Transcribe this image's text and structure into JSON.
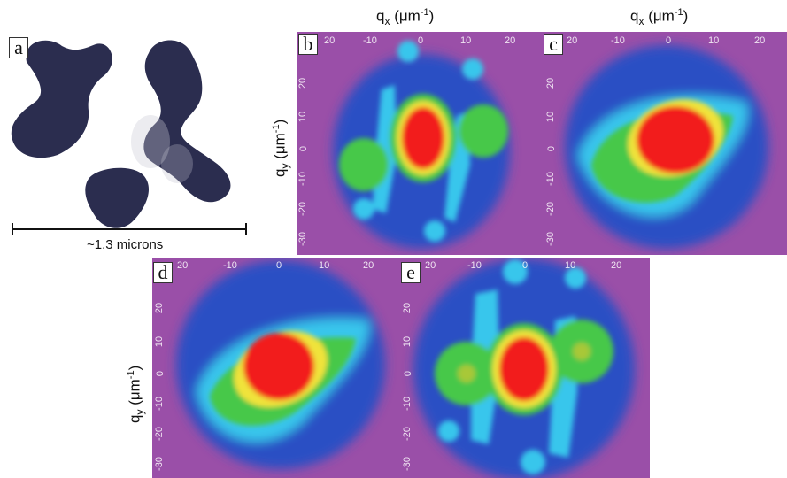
{
  "panels": {
    "a": {
      "letter": "a",
      "scale_label": "~1.3 microns"
    },
    "b": {
      "letter": "b"
    },
    "c": {
      "letter": "c"
    },
    "d": {
      "letter": "d"
    },
    "e": {
      "letter": "e"
    }
  },
  "axes": {
    "qx_label": "q",
    "qx_sub": "x",
    "qx_unit": " (μm",
    "qx_exp": "-1",
    "qx_close": ")",
    "qy_label": "q",
    "qy_sub": "y",
    "qy_unit": " (μm",
    "qy_exp": "-1",
    "qy_close": ")",
    "top_ticks": [
      "20",
      "-10",
      "0",
      "10",
      "20"
    ],
    "left_ticks": [
      "20",
      "10",
      "0",
      "-10",
      "-20",
      "-30"
    ]
  },
  "colors": {
    "background_magenta": "#9a4fa8",
    "blue": "#2c4fc4",
    "cyan": "#37c6ec",
    "green": "#46c84a",
    "yellow": "#f0e33a",
    "red": "#f21c1c",
    "particle": "#2b2d4f"
  }
}
